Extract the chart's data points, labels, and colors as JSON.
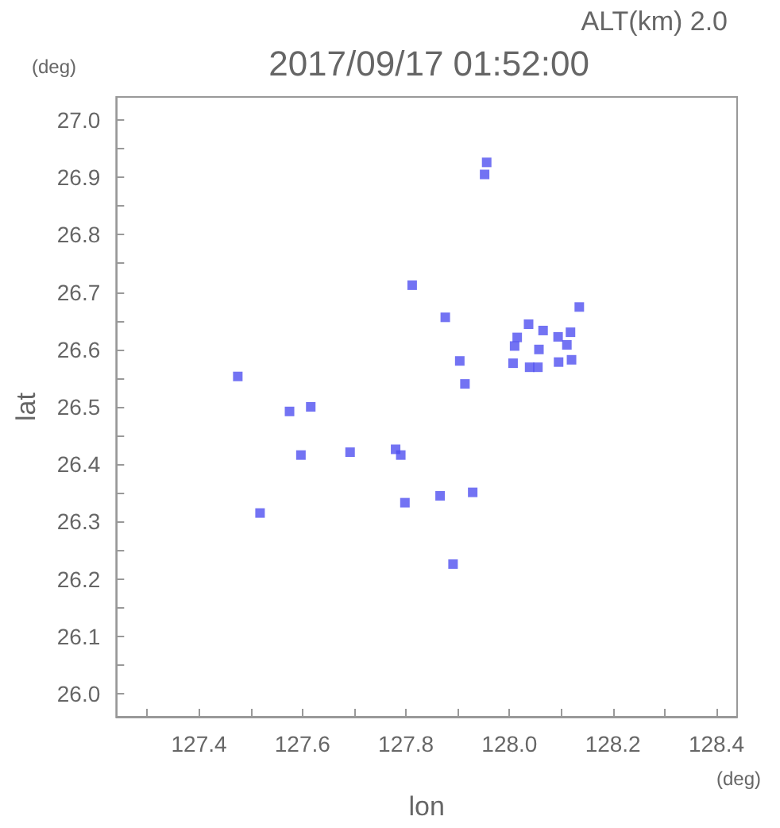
{
  "chart_data": {
    "type": "scatter",
    "title": "2017/09/17 01:52:00",
    "subtitle": "ALT(km) 2.0",
    "xlabel": "lon",
    "ylabel": "lat",
    "annotations": [
      "(deg)",
      "(deg)"
    ],
    "x": [
      127.956,
      127.952,
      127.812,
      127.876,
      128.135,
      128.057,
      128.039,
      128.055,
      128.01,
      128.015,
      128.007,
      128.065,
      128.111,
      128.12,
      128.095,
      128.118,
      128.094,
      128.037,
      127.914,
      127.904,
      127.475,
      127.575,
      127.616,
      127.597,
      127.692,
      127.78,
      127.79,
      127.518,
      127.798,
      127.866,
      127.929,
      127.891
    ],
    "values": [
      26.926,
      26.905,
      26.712,
      26.656,
      26.674,
      26.6,
      26.569,
      26.569,
      26.606,
      26.621,
      26.576,
      26.633,
      26.608,
      26.582,
      26.578,
      26.63,
      26.622,
      26.644,
      26.54,
      26.58,
      26.553,
      26.492,
      26.5,
      26.416,
      26.421,
      26.426,
      26.416,
      26.315,
      26.333,
      26.345,
      26.351,
      26.226
    ],
    "color": "#5050f0",
    "marker": "square",
    "grid": false,
    "xlim": [
      127.24,
      128.44
    ],
    "ylim": [
      25.96,
      27.04
    ],
    "xticks": [
      {
        "value": 127.3,
        "label": null
      },
      127.4,
      {
        "value": 127.5,
        "label": null
      },
      127.6,
      {
        "value": 127.7,
        "label": null
      },
      127.8,
      {
        "value": 127.9,
        "label": null
      },
      {
        "value": 128,
        "label": "128.0"
      },
      {
        "value": 128.1,
        "label": null
      },
      128.2,
      {
        "value": 128.3,
        "label": null
      },
      128.4
    ],
    "yticks": [
      {
        "value": 26,
        "label": "26.0"
      },
      {
        "value": 26.05,
        "label": null
      },
      26.1,
      {
        "value": 26.15,
        "label": null
      },
      26.2,
      {
        "value": 26.25,
        "label": null
      },
      26.3,
      {
        "value": 26.35,
        "label": null
      },
      26.4,
      {
        "value": 26.45,
        "label": null
      },
      26.5,
      {
        "value": 26.55,
        "label": null
      },
      26.6,
      {
        "value": 26.65,
        "label": null
      },
      26.7,
      {
        "value": 26.75,
        "label": null
      },
      26.8,
      {
        "value": 26.85,
        "label": null
      },
      26.9,
      {
        "value": 26.95,
        "label": null
      },
      {
        "value": 27,
        "label": "27.0"
      }
    ]
  }
}
